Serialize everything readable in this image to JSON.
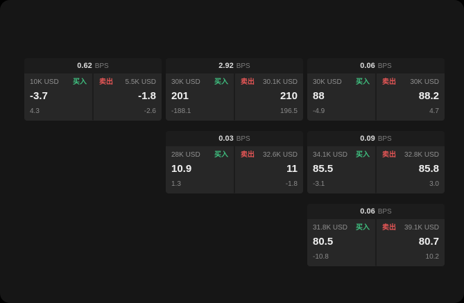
{
  "colors": {
    "buy": "#3fbf7f",
    "sell": "#e25555",
    "panel": "#272727",
    "background": "#161616"
  },
  "cards": [
    {
      "bps_value": "0.62",
      "bps_unit": "BPS",
      "buy": {
        "size": "10K USD",
        "label": "买入",
        "price": "-3.7",
        "sub": "4.3"
      },
      "sell": {
        "label": "卖出",
        "size": "5.5K USD",
        "price": "-1.8",
        "sub": "-2.6"
      }
    },
    {
      "bps_value": "2.92",
      "bps_unit": "BPS",
      "buy": {
        "size": "30K USD",
        "label": "买入",
        "price": "201",
        "sub": "-188.1"
      },
      "sell": {
        "label": "卖出",
        "size": "30.1K USD",
        "price": "210",
        "sub": "196.5"
      }
    },
    {
      "bps_value": "0.06",
      "bps_unit": "BPS",
      "buy": {
        "size": "30K USD",
        "label": "买入",
        "price": "88",
        "sub": "-4.9"
      },
      "sell": {
        "label": "卖出",
        "size": "30K USD",
        "price": "88.2",
        "sub": "4.7"
      }
    },
    {
      "bps_value": "0.03",
      "bps_unit": "BPS",
      "buy": {
        "size": "28K USD",
        "label": "买入",
        "price": "10.9",
        "sub": "1.3"
      },
      "sell": {
        "label": "卖出",
        "size": "32.6K USD",
        "price": "11",
        "sub": "-1.8"
      }
    },
    {
      "bps_value": "0.09",
      "bps_unit": "BPS",
      "buy": {
        "size": "34.1K USD",
        "label": "买入",
        "price": "85.5",
        "sub": "-3.1"
      },
      "sell": {
        "label": "卖出",
        "size": "32.8K USD",
        "price": "85.8",
        "sub": "3.0"
      }
    },
    {
      "bps_value": "0.06",
      "bps_unit": "BPS",
      "buy": {
        "size": "31.8K USD",
        "label": "买入",
        "price": "80.5",
        "sub": "-10.8"
      },
      "sell": {
        "label": "卖出",
        "size": "39.1K USD",
        "price": "80.7",
        "sub": "10.2"
      }
    }
  ]
}
